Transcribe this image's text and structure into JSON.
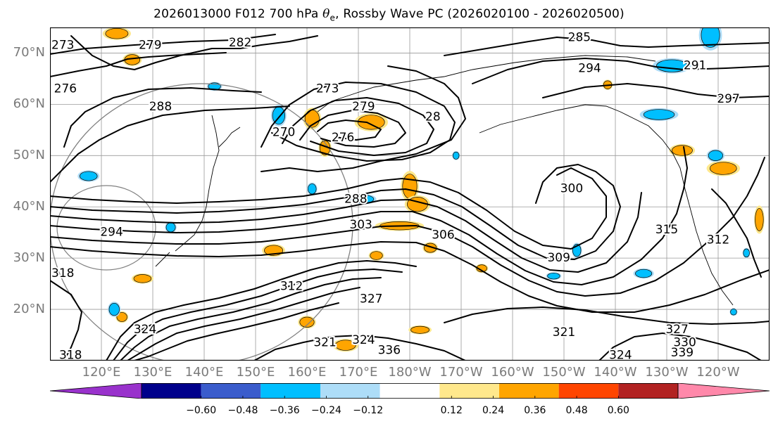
{
  "title": {
    "prefix": "2026013000 F012 700 hPa ",
    "symbol": "θ",
    "subscript": "e",
    "suffix": ", Rossby Wave PC (2026020100 - 2026020500)"
  },
  "map": {
    "projection": "lat-lon",
    "lat_range": [
      10,
      75
    ],
    "lon_range": [
      110,
      250
    ],
    "grid": true,
    "lat_ticks": [
      {
        "lat": 70,
        "label": "70°N"
      },
      {
        "lat": 60,
        "label": "60°N"
      },
      {
        "lat": 50,
        "label": "50°N"
      },
      {
        "lat": 40,
        "label": "40°N"
      },
      {
        "lat": 30,
        "label": "30°N"
      },
      {
        "lat": 20,
        "label": "20°N"
      }
    ],
    "lon_ticks": [
      {
        "lon": 120,
        "label": "120°E"
      },
      {
        "lon": 130,
        "label": "130°E"
      },
      {
        "lon": 140,
        "label": "140°E"
      },
      {
        "lon": 150,
        "label": "150°E"
      },
      {
        "lon": 160,
        "label": "160°E"
      },
      {
        "lon": 170,
        "label": "170°E"
      },
      {
        "lon": 180,
        "label": "180°W"
      },
      {
        "lon": 190,
        "label": "170°W"
      },
      {
        "lon": 200,
        "label": "160°W"
      },
      {
        "lon": 210,
        "label": "150°W"
      },
      {
        "lon": 220,
        "label": "140°W"
      },
      {
        "lon": 230,
        "label": "130°W"
      },
      {
        "lon": 240,
        "label": "120°W"
      }
    ],
    "contour_labels": [
      {
        "text": "273",
        "lon": 112.5,
        "lat": 71.5
      },
      {
        "text": "279",
        "lon": 129.5,
        "lat": 71.5
      },
      {
        "text": "282",
        "lon": 147,
        "lat": 72
      },
      {
        "text": "276",
        "lon": 113,
        "lat": 63
      },
      {
        "text": "288",
        "lon": 131.5,
        "lat": 59.5
      },
      {
        "text": "273",
        "lon": 164,
        "lat": 63
      },
      {
        "text": "279",
        "lon": 171,
        "lat": 59.5
      },
      {
        "text": "28",
        "lon": 184.5,
        "lat": 57.5
      },
      {
        "text": "270",
        "lon": 155.5,
        "lat": 54.5
      },
      {
        "text": "276",
        "lon": 167,
        "lat": 53.5
      },
      {
        "text": "285",
        "lon": 213,
        "lat": 73
      },
      {
        "text": "294",
        "lon": 215,
        "lat": 67
      },
      {
        "text": "291",
        "lon": 235.5,
        "lat": 67.5
      },
      {
        "text": "297",
        "lon": 242,
        "lat": 61
      },
      {
        "text": "288",
        "lon": 169.5,
        "lat": 41.5
      },
      {
        "text": "303",
        "lon": 170.5,
        "lat": 36.5
      },
      {
        "text": "300",
        "lon": 211.5,
        "lat": 43.5
      },
      {
        "text": "306",
        "lon": 186.5,
        "lat": 34.5
      },
      {
        "text": "315",
        "lon": 230,
        "lat": 35.5
      },
      {
        "text": "312",
        "lon": 240,
        "lat": 33.5
      },
      {
        "text": "309",
        "lon": 209,
        "lat": 30
      },
      {
        "text": "294",
        "lon": 122,
        "lat": 35
      },
      {
        "text": "318",
        "lon": 112.5,
        "lat": 27
      },
      {
        "text": "312",
        "lon": 157,
        "lat": 24.5
      },
      {
        "text": "327",
        "lon": 172.5,
        "lat": 22
      },
      {
        "text": "321",
        "lon": 210,
        "lat": 15.5
      },
      {
        "text": "327",
        "lon": 232,
        "lat": 16
      },
      {
        "text": "330",
        "lon": 233.5,
        "lat": 13.5
      },
      {
        "text": "324",
        "lon": 221,
        "lat": 11
      },
      {
        "text": "339",
        "lon": 233,
        "lat": 11.5
      },
      {
        "text": "321",
        "lon": 163.5,
        "lat": 13.5
      },
      {
        "text": "324",
        "lon": 171,
        "lat": 14
      },
      {
        "text": "336",
        "lon": 176,
        "lat": 12
      },
      {
        "text": "318",
        "lon": 114,
        "lat": 11
      },
      {
        "text": "324",
        "lon": 128.5,
        "lat": 16
      }
    ],
    "anomaly_patches": [
      {
        "lon": 123,
        "lat": 73.8,
        "rx": 2.2,
        "ry": 1.0,
        "sign": 1
      },
      {
        "lon": 126,
        "lat": 68.7,
        "rx": 1.5,
        "ry": 1.0,
        "sign": 1
      },
      {
        "lon": 161,
        "lat": 57.2,
        "rx": 1.4,
        "ry": 1.7,
        "sign": 1
      },
      {
        "lon": 172.5,
        "lat": 56.5,
        "rx": 2.6,
        "ry": 1.4,
        "sign": 1
      },
      {
        "lon": 163.5,
        "lat": 51.5,
        "rx": 1.0,
        "ry": 1.4,
        "sign": 1
      },
      {
        "lon": 180,
        "lat": 44,
        "rx": 1.4,
        "ry": 2.4,
        "sign": 1
      },
      {
        "lon": 181.5,
        "lat": 40.5,
        "rx": 2.0,
        "ry": 1.4,
        "sign": 1
      },
      {
        "lon": 178,
        "lat": 36.3,
        "rx": 3.8,
        "ry": 0.8,
        "sign": 1
      },
      {
        "lon": 153.5,
        "lat": 31.5,
        "rx": 1.8,
        "ry": 1.0,
        "sign": 1
      },
      {
        "lon": 173.5,
        "lat": 30.5,
        "rx": 1.2,
        "ry": 0.8,
        "sign": 1
      },
      {
        "lon": 184,
        "lat": 32,
        "rx": 1.2,
        "ry": 0.9,
        "sign": 1
      },
      {
        "lon": 194,
        "lat": 28,
        "rx": 1.0,
        "ry": 0.7,
        "sign": 1
      },
      {
        "lon": 128,
        "lat": 26,
        "rx": 1.7,
        "ry": 0.8,
        "sign": 1
      },
      {
        "lon": 160,
        "lat": 17.5,
        "rx": 1.4,
        "ry": 1.0,
        "sign": 1
      },
      {
        "lon": 167.5,
        "lat": 13,
        "rx": 2.0,
        "ry": 1.0,
        "sign": 1
      },
      {
        "lon": 182,
        "lat": 16,
        "rx": 1.8,
        "ry": 0.7,
        "sign": 1
      },
      {
        "lon": 233,
        "lat": 51,
        "rx": 2.0,
        "ry": 1.0,
        "sign": 1
      },
      {
        "lon": 241,
        "lat": 47.5,
        "rx": 2.6,
        "ry": 1.2,
        "sign": 1
      },
      {
        "lon": 248,
        "lat": 37.5,
        "rx": 0.8,
        "ry": 2.2,
        "sign": 1
      },
      {
        "lon": 218.5,
        "lat": 63.8,
        "rx": 0.8,
        "ry": 0.8,
        "sign": 1
      },
      {
        "lon": 124,
        "lat": 18.5,
        "rx": 1.0,
        "ry": 0.9,
        "sign": 1
      },
      {
        "lon": 238.5,
        "lat": 73.5,
        "rx": 1.8,
        "ry": 2.4,
        "sign": -1
      },
      {
        "lon": 231,
        "lat": 67.5,
        "rx": 3.0,
        "ry": 1.2,
        "sign": -1
      },
      {
        "lon": 154.5,
        "lat": 57.8,
        "rx": 1.2,
        "ry": 1.7,
        "sign": -1
      },
      {
        "lon": 142,
        "lat": 63.5,
        "rx": 1.2,
        "ry": 0.7,
        "sign": -1
      },
      {
        "lon": 117.5,
        "lat": 46,
        "rx": 1.7,
        "ry": 0.9,
        "sign": -1
      },
      {
        "lon": 228.5,
        "lat": 58,
        "rx": 3.0,
        "ry": 1.0,
        "sign": -1
      },
      {
        "lon": 239.5,
        "lat": 50,
        "rx": 1.4,
        "ry": 1.0,
        "sign": -1
      },
      {
        "lon": 171,
        "lat": 41.5,
        "rx": 2.0,
        "ry": 0.8,
        "sign": -1
      },
      {
        "lon": 161,
        "lat": 43.5,
        "rx": 0.8,
        "ry": 1.0,
        "sign": -1
      },
      {
        "lon": 212.5,
        "lat": 31.5,
        "rx": 0.8,
        "ry": 1.2,
        "sign": -1
      },
      {
        "lon": 225.5,
        "lat": 27,
        "rx": 1.6,
        "ry": 0.8,
        "sign": -1
      },
      {
        "lon": 208,
        "lat": 26.5,
        "rx": 1.2,
        "ry": 0.6,
        "sign": -1
      },
      {
        "lon": 122.5,
        "lat": 20,
        "rx": 1.0,
        "ry": 1.2,
        "sign": -1
      },
      {
        "lon": 133.5,
        "lat": 36,
        "rx": 0.9,
        "ry": 0.9,
        "sign": -1
      },
      {
        "lon": 245.5,
        "lat": 31,
        "rx": 0.6,
        "ry": 0.8,
        "sign": -1
      },
      {
        "lon": 243,
        "lat": 19.5,
        "rx": 0.6,
        "ry": 0.6,
        "sign": -1
      },
      {
        "lon": 189,
        "lat": 50,
        "rx": 0.6,
        "ry": 0.7,
        "sign": -1
      }
    ]
  },
  "colorbar": {
    "extend": "both",
    "colors": [
      "#9932CC",
      "#00008B",
      "#3A5CCC",
      "#00BFFF",
      "#ADDDF8",
      "#FFFFFF",
      "#FFE88C",
      "#FFA500",
      "#FF4500",
      "#B22222",
      "#FF88AA"
    ],
    "ticks": [
      {
        "value": -0.6,
        "label": "−0.60"
      },
      {
        "value": -0.48,
        "label": "−0.48"
      },
      {
        "value": -0.36,
        "label": "−0.36"
      },
      {
        "value": -0.24,
        "label": "−0.24"
      },
      {
        "value": -0.12,
        "label": "−0.12"
      },
      {
        "value": 0.12,
        "label": "0.12"
      },
      {
        "value": 0.24,
        "label": "0.24"
      },
      {
        "value": 0.36,
        "label": "0.36"
      },
      {
        "value": 0.48,
        "label": "0.48"
      },
      {
        "value": 0.6,
        "label": "0.60"
      }
    ]
  }
}
